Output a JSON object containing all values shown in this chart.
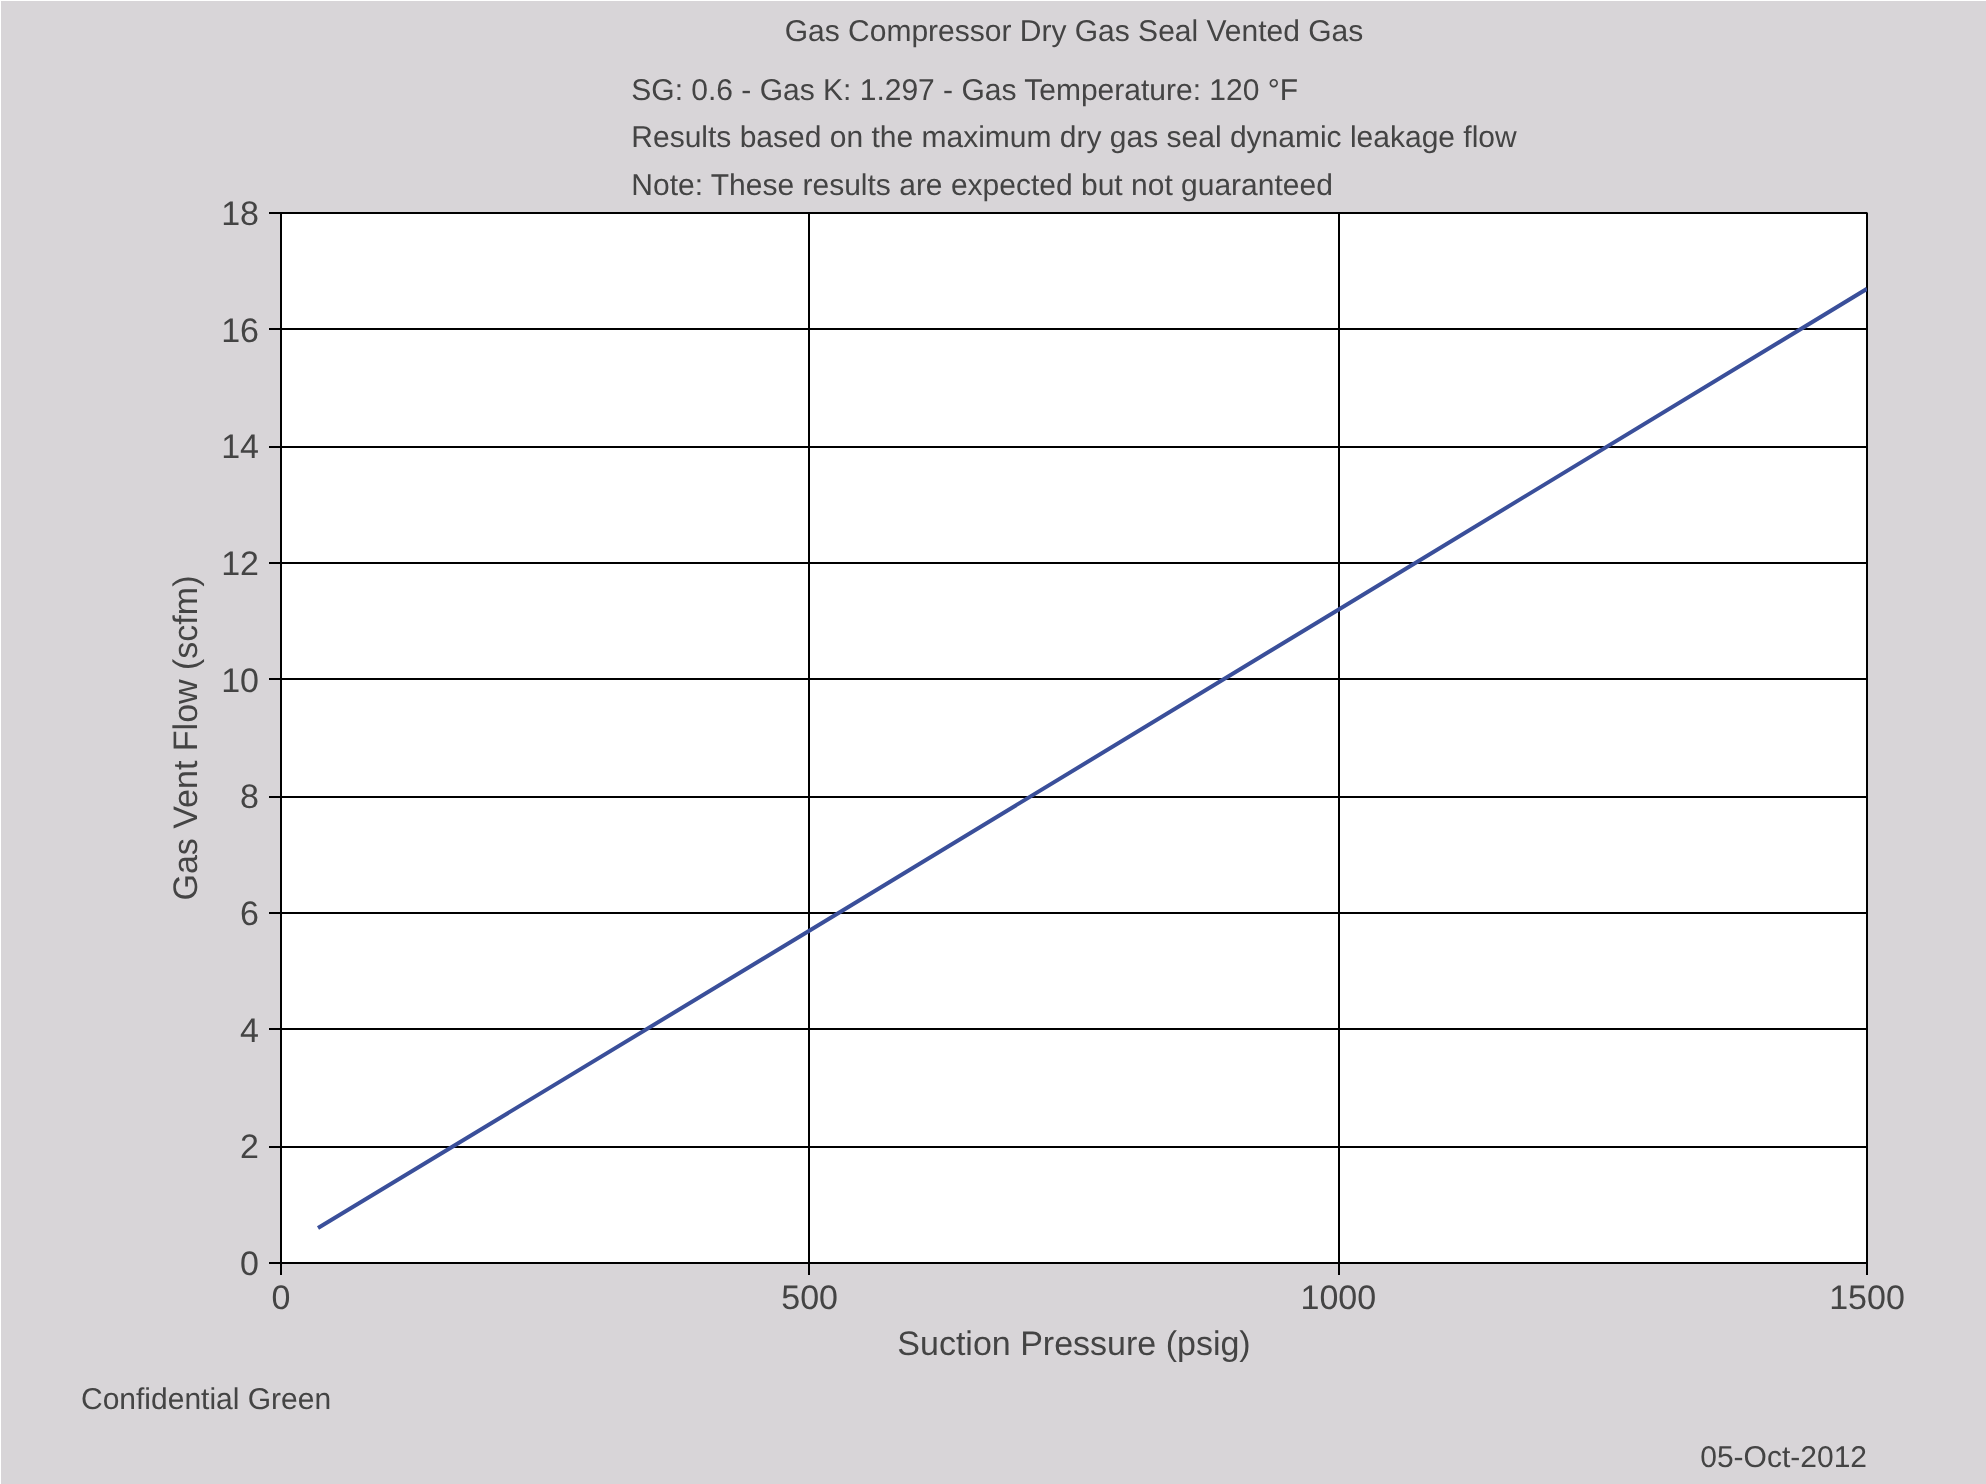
{
  "chart_data": {
    "type": "line",
    "title": "Gas Compressor Dry Gas Seal Vented Gas",
    "subtitle": "SG: 0.6 - Gas K: 1.297 - Gas Temperature: 120 °F\nResults based on the maximum dry gas seal dynamic leakage flow\nNote: These results are expected but not guaranteed",
    "xlabel": "Suction Pressure (psig)",
    "ylabel": "Gas Vent Flow (scfm)",
    "x": [
      35,
      500,
      1000,
      1500
    ],
    "series": [
      {
        "color": "#3a4f9a",
        "values": [
          0.6,
          5.7,
          11.2,
          16.7
        ]
      }
    ],
    "xlim": [
      0,
      1500
    ],
    "ylim": [
      0,
      18
    ],
    "xticks": [
      0,
      500,
      1000,
      1500
    ],
    "yticks": [
      0,
      2,
      4,
      6,
      8,
      10,
      12,
      14,
      16,
      18
    ],
    "grid": true,
    "annotations": [
      "Confidential Green",
      "05-Oct-2012"
    ]
  }
}
